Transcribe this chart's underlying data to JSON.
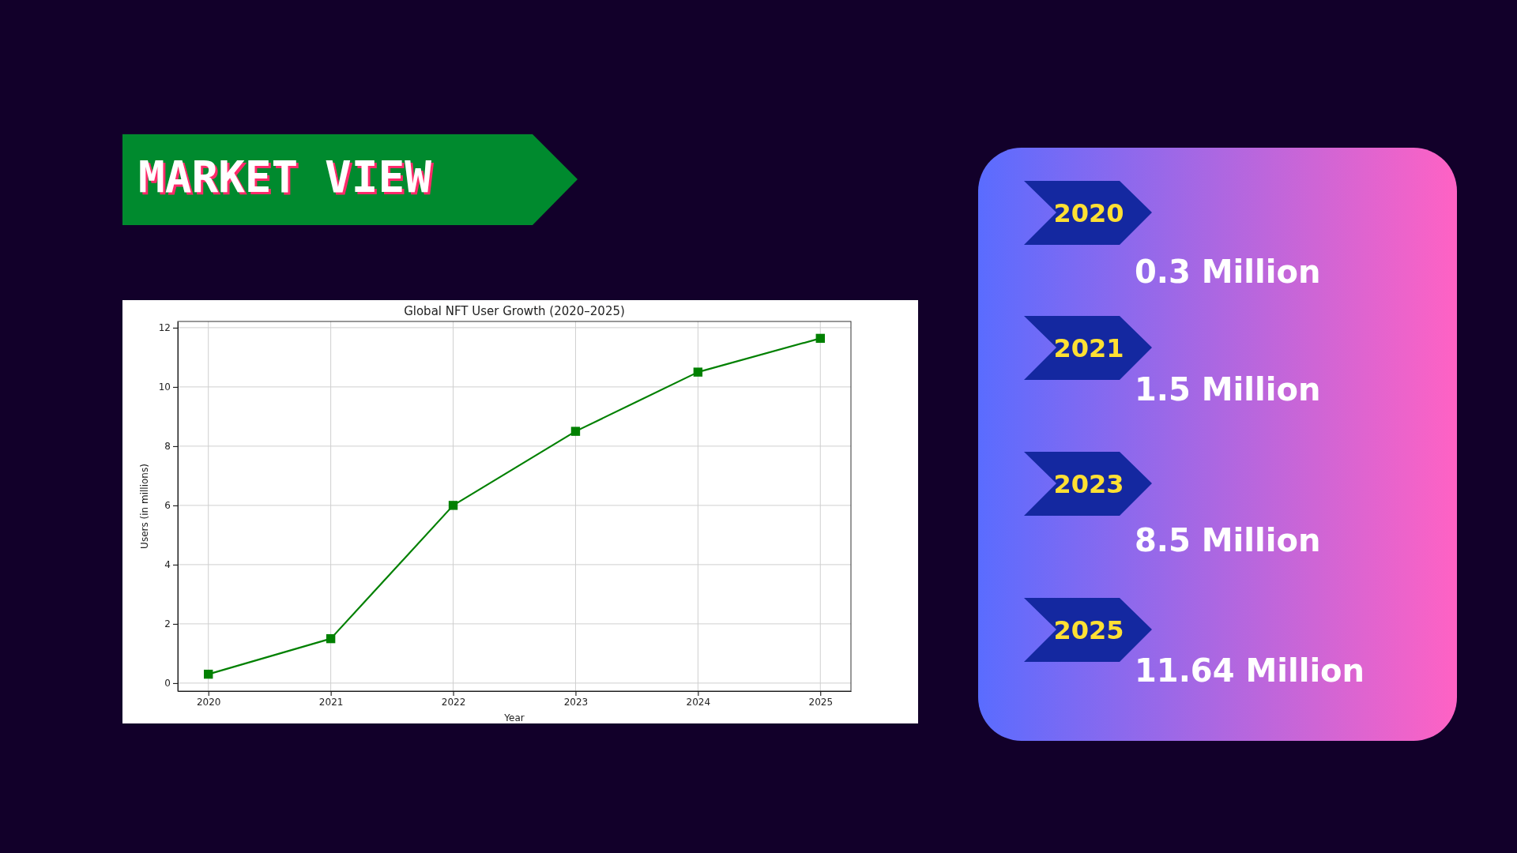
{
  "chart_data": [
    {
      "type": "line",
      "title": "Global NFT User Growth (2020–2025)",
      "xlabel": "Year",
      "ylabel": "Users (in millions)",
      "annotations": [
        "MARKET VIEW"
      ],
      "x": [
        2020,
        2021,
        2022,
        2023,
        2024,
        2025
      ],
      "series": [
        {
          "color": "#008000",
          "values": [
            0.3,
            1.5,
            6.0,
            8.5,
            10.5,
            11.64
          ]
        }
      ],
      "xlim": [
        2019.75,
        2025.25
      ],
      "xticks": [
        2020,
        2021,
        2022,
        2023,
        2024,
        2025
      ],
      "ylim": [
        -0.27,
        12.21
      ],
      "yticks": [
        0,
        2,
        4,
        6,
        8,
        10,
        12
      ],
      "grid": true,
      "marker": "square",
      "line_style": "solid"
    },
    {
      "type": "other",
      "annotations": [
        "2020",
        "0.3 Million",
        "2021",
        "1.5 Million",
        "2023",
        "8.5 Million",
        "2025",
        "11.64 Million"
      ]
    }
  ]
}
